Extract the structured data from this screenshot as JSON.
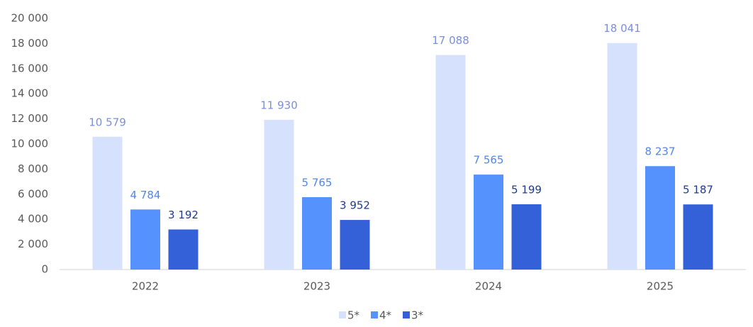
{
  "chart_data": {
    "type": "bar",
    "categories": [
      "2022",
      "2023",
      "2024",
      "2025"
    ],
    "series": [
      {
        "name": "5*",
        "color": "#d6e2fd",
        "label_color": "#7b8fd6",
        "values": [
          10579,
          11930,
          17088,
          18041
        ],
        "value_labels": [
          "10 579",
          "11 930",
          "17 088",
          "18 041"
        ]
      },
      {
        "name": "4*",
        "color": "#5592fd",
        "label_color": "#4f86ec",
        "values": [
          4784,
          5765,
          7565,
          8237
        ],
        "value_labels": [
          "4 784",
          "5 765",
          "7 565",
          "8 237"
        ]
      },
      {
        "name": "3*",
        "color": "#3561d8",
        "label_color": "#1f3a8f",
        "values": [
          3192,
          3952,
          5199,
          5187
        ],
        "value_labels": [
          "3 192",
          "3 952",
          "5 199",
          "5 187"
        ]
      }
    ],
    "ylim": [
      0,
      20000
    ],
    "yticks": [
      0,
      {
        "value": 2000,
        "label": "2 000"
      },
      {
        "value": 4000,
        "label": "4 000"
      },
      {
        "value": 6000,
        "label": "6 000"
      },
      {
        "value": 8000,
        "label": "8 000"
      },
      {
        "value": 10000,
        "label": "10 000"
      },
      {
        "value": 12000,
        "label": "12 000"
      },
      {
        "value": 14000,
        "label": "14 000"
      },
      {
        "value": 16000,
        "label": "16 000"
      },
      {
        "value": 18000,
        "label": "18 000"
      },
      {
        "value": 20000,
        "label": "20 000"
      }
    ],
    "grid": false,
    "legend": "bottom"
  }
}
